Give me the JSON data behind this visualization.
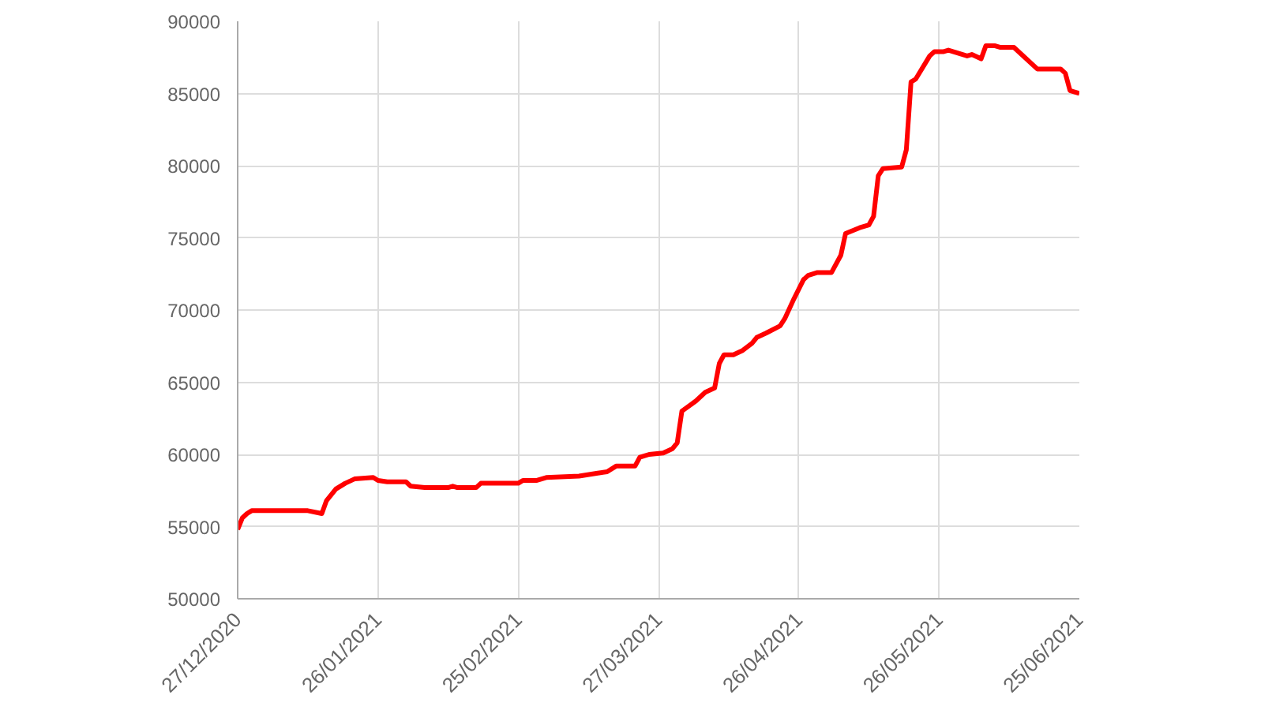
{
  "chart_data": {
    "type": "line",
    "grid": true,
    "line_style": "solid",
    "xlim": [
      "2020-12-27",
      "2021-06-25"
    ],
    "xticks": [
      {
        "value": "2020-12-27",
        "label": "27/12/2020"
      },
      {
        "value": "2021-01-26",
        "label": "26/01/2021"
      },
      {
        "value": "2021-02-25",
        "label": "25/02/2021"
      },
      {
        "value": "2021-03-27",
        "label": "27/03/2021"
      },
      {
        "value": "2021-04-26",
        "label": "26/04/2021"
      },
      {
        "value": "2021-05-26",
        "label": "26/05/2021"
      },
      {
        "value": "2021-06-25",
        "label": "25/06/2021"
      }
    ],
    "ylim": [
      50000,
      90000
    ],
    "yticks": [
      50000,
      55000,
      60000,
      65000,
      70000,
      75000,
      80000,
      85000,
      90000
    ],
    "x": [
      "2020-12-27",
      "2020-12-28",
      "2020-12-29",
      "2020-12-30",
      "2021-01-11",
      "2021-01-14",
      "2021-01-15",
      "2021-01-17",
      "2021-01-19",
      "2021-01-21",
      "2021-01-25",
      "2021-01-26",
      "2021-01-28",
      "2021-02-01",
      "2021-02-02",
      "2021-02-05",
      "2021-02-10",
      "2021-02-11",
      "2021-02-12",
      "2021-02-16",
      "2021-02-17",
      "2021-02-25",
      "2021-02-26",
      "2021-03-01",
      "2021-03-03",
      "2021-03-10",
      "2021-03-14",
      "2021-03-16",
      "2021-03-18",
      "2021-03-22",
      "2021-03-23",
      "2021-03-25",
      "2021-03-28",
      "2021-03-30",
      "2021-03-31",
      "2021-04-01",
      "2021-04-04",
      "2021-04-06",
      "2021-04-08",
      "2021-04-09",
      "2021-04-10",
      "2021-04-12",
      "2021-04-14",
      "2021-04-16",
      "2021-04-17",
      "2021-04-19",
      "2021-04-22",
      "2021-04-23",
      "2021-04-25",
      "2021-04-27",
      "2021-04-28",
      "2021-04-30",
      "2021-05-03",
      "2021-05-05",
      "2021-05-06",
      "2021-05-09",
      "2021-05-11",
      "2021-05-12",
      "2021-05-13",
      "2021-05-14",
      "2021-05-18",
      "2021-05-19",
      "2021-05-20",
      "2021-05-21",
      "2021-05-24",
      "2021-05-25",
      "2021-05-27",
      "2021-05-28",
      "2021-06-01",
      "2021-06-02",
      "2021-06-04",
      "2021-06-05",
      "2021-06-07",
      "2021-06-08",
      "2021-06-11",
      "2021-06-16",
      "2021-06-21",
      "2021-06-22",
      "2021-06-23",
      "2021-06-25"
    ],
    "series": [
      {
        "color": "#ff0000",
        "values": [
          54800,
          55600,
          55900,
          56100,
          56100,
          55900,
          56800,
          57600,
          58000,
          58300,
          58400,
          58200,
          58100,
          58100,
          57800,
          57700,
          57700,
          57800,
          57700,
          57700,
          58000,
          58000,
          58200,
          58200,
          58400,
          58500,
          58700,
          58800,
          59200,
          59200,
          59800,
          60000,
          60100,
          60400,
          60800,
          63000,
          63700,
          64300,
          64600,
          66300,
          66900,
          66900,
          67200,
          67700,
          68100,
          68400,
          68900,
          69400,
          70800,
          72100,
          72400,
          72600,
          72600,
          73800,
          75300,
          75700,
          75900,
          76500,
          79300,
          79800,
          79900,
          81100,
          85800,
          86000,
          87600,
          87900,
          87900,
          88000,
          87600,
          87700,
          87400,
          88300,
          88300,
          88200,
          88200,
          86700,
          86700,
          86400,
          85200,
          85000
        ]
      }
    ]
  }
}
